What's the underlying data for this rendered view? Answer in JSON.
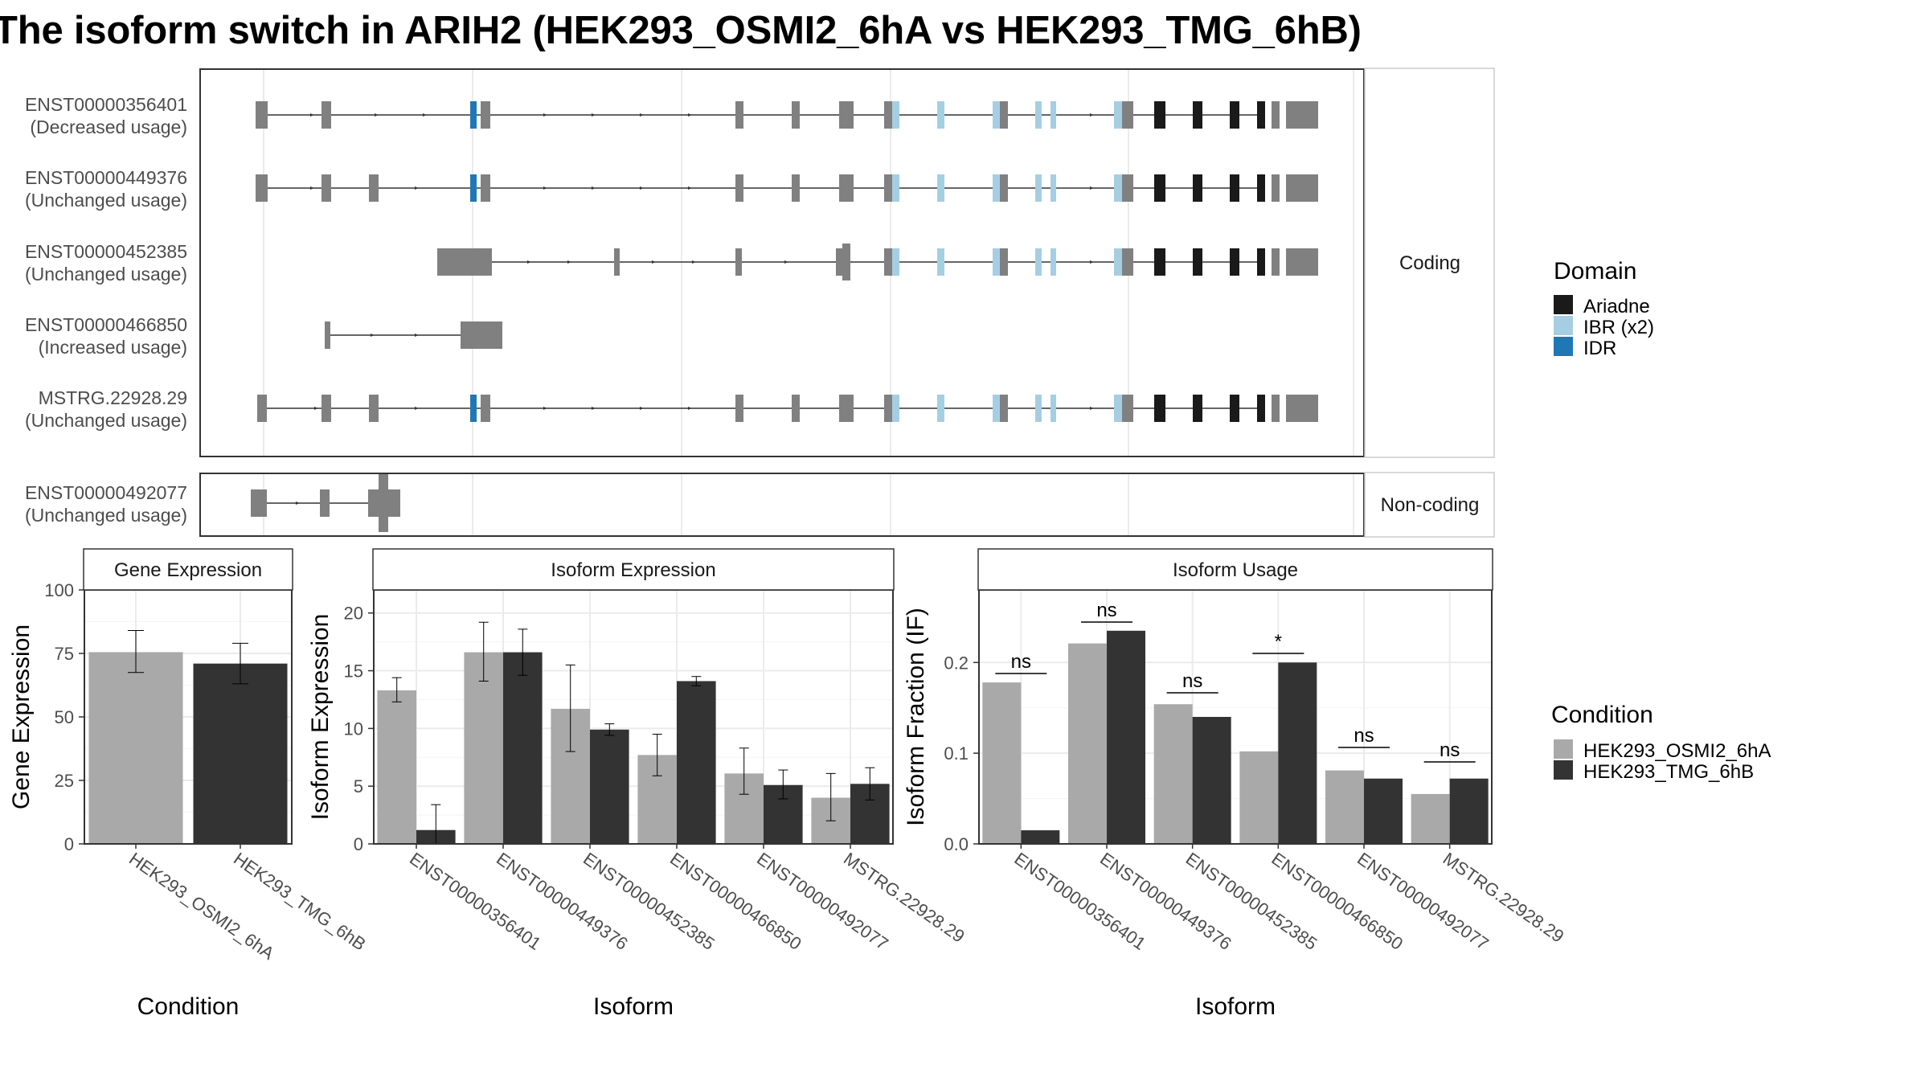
{
  "title": "The isoform switch in ARIH2 (HEK293_OSMI2_6hA vs HEK293_TMG_6hB)",
  "colors": {
    "condition_a": "#a9a9a9",
    "condition_b": "#333333",
    "exon": "#808080",
    "Ariadne": "#1a1a1a",
    "IBR (x2)": "#a6cee3",
    "IDR": "#1f78b4"
  },
  "structure": {
    "facets": [
      "Coding",
      "Non-coding"
    ],
    "transcripts": [
      {
        "id": "ENST00000356401",
        "usage": "(Decreased usage)",
        "group": "Coding"
      },
      {
        "id": "ENST00000449376",
        "usage": "(Unchanged usage)",
        "group": "Coding"
      },
      {
        "id": "ENST00000452385",
        "usage": "(Unchanged usage)",
        "group": "Coding"
      },
      {
        "id": "ENST00000466850",
        "usage": "(Increased usage)",
        "group": "Coding"
      },
      {
        "id": "MSTRG.22928.29",
        "usage": "(Unchanged usage)",
        "group": "Coding"
      },
      {
        "id": "ENST00000492077",
        "usage": "(Unchanged usage)",
        "group": "Non-coding"
      }
    ]
  },
  "legend_domain": {
    "title": "Domain",
    "items": [
      "Ariadne",
      "IBR (x2)",
      "IDR"
    ]
  },
  "legend_condition": {
    "title": "Condition",
    "items": [
      "HEK293_OSMI2_6hA",
      "HEK293_TMG_6hB"
    ]
  },
  "chart_data": [
    {
      "type": "bar",
      "title": "Gene Expression",
      "xlabel": "Condition",
      "ylabel": "Gene Expression",
      "ylim": [
        0,
        100
      ],
      "yticks": [
        0,
        25,
        50,
        75,
        100
      ],
      "categories": [
        "HEK293_OSMI2_6hA",
        "HEK293_TMG_6hB"
      ],
      "values": [
        75.5,
        71
      ],
      "errors": [
        [
          67.5,
          84
        ],
        [
          63,
          79
        ]
      ]
    },
    {
      "type": "bar",
      "title": "Isoform Expression",
      "xlabel": "Isoform",
      "ylabel": "Isoform Expression",
      "ylim": [
        0,
        22
      ],
      "yticks": [
        0,
        5,
        10,
        15,
        20
      ],
      "categories": [
        "ENST00000356401",
        "ENST00000449376",
        "ENST00000452385",
        "ENST00000466850",
        "ENST00000492077",
        "MSTRG.22928.29"
      ],
      "series": [
        {
          "name": "HEK293_OSMI2_6hA",
          "values": [
            13.3,
            16.6,
            11.7,
            7.7,
            6.1,
            4.0
          ],
          "errors": [
            [
              12.3,
              14.4
            ],
            [
              14.1,
              19.2
            ],
            [
              8.0,
              15.5
            ],
            [
              5.9,
              9.5
            ],
            [
              4.3,
              8.3
            ],
            [
              2.0,
              6.1
            ]
          ]
        },
        {
          "name": "HEK293_TMG_6hB",
          "values": [
            1.2,
            16.6,
            9.9,
            14.1,
            5.1,
            5.2
          ],
          "errors": [
            [
              0.0,
              3.4
            ],
            [
              14.6,
              18.6
            ],
            [
              9.4,
              10.4
            ],
            [
              13.7,
              14.5
            ],
            [
              3.9,
              6.4
            ],
            [
              3.8,
              6.6
            ]
          ]
        }
      ]
    },
    {
      "type": "bar",
      "title": "Isoform Usage",
      "xlabel": "Isoform",
      "ylabel": "Isoform Fraction (IF)",
      "ylim": [
        0,
        0.28
      ],
      "yticks": [
        0.0,
        0.1,
        0.2
      ],
      "ytick_labels": [
        "0.0",
        "0.1",
        "0.2"
      ],
      "categories": [
        "ENST00000356401",
        "ENST00000449376",
        "ENST00000452385",
        "ENST00000466850",
        "ENST00000492077",
        "MSTRG.22928.29"
      ],
      "series": [
        {
          "name": "HEK293_OSMI2_6hA",
          "values": [
            0.178,
            0.221,
            0.154,
            0.102,
            0.081,
            0.055
          ]
        },
        {
          "name": "HEK293_TMG_6hB",
          "values": [
            0.015,
            0.235,
            0.14,
            0.2,
            0.072,
            0.072
          ]
        }
      ],
      "significance": [
        "ns",
        "ns",
        "ns",
        "*",
        "ns",
        "ns"
      ]
    }
  ]
}
